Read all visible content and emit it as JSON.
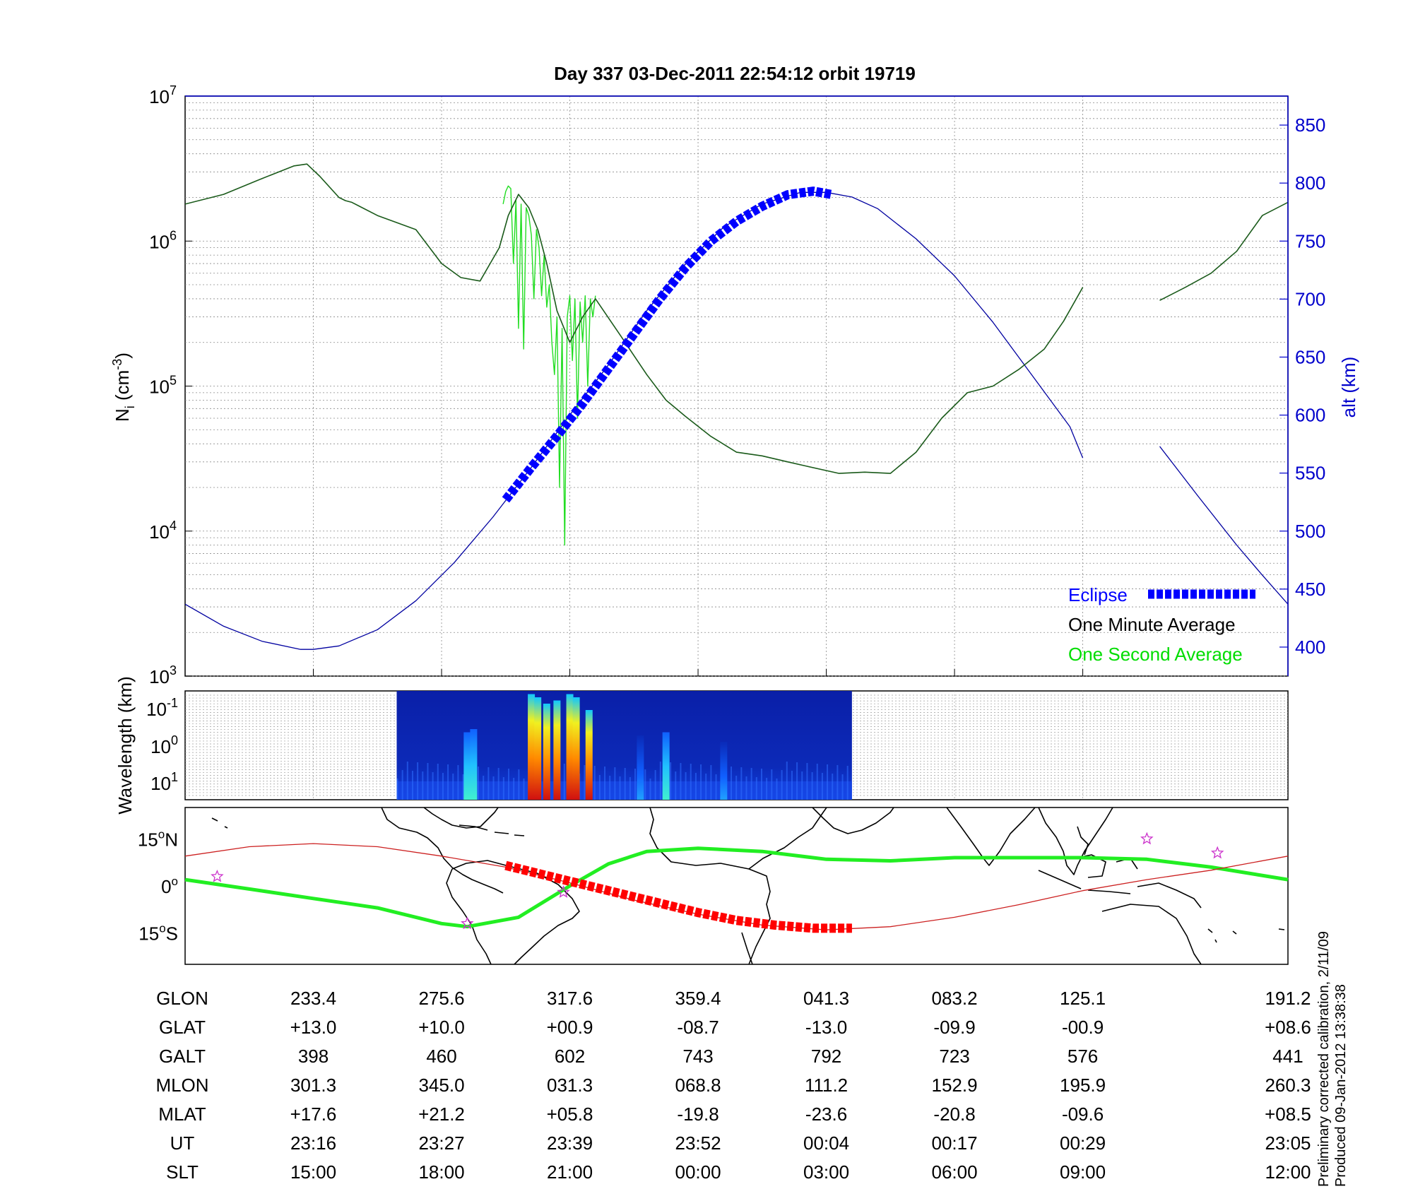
{
  "title": "Day 337  03-Dec-2011 22:54:12   orbit 19719",
  "chart_data": [
    {
      "type": "line",
      "panel": "density",
      "ylabel_left": "N",
      "ylabel_left_sub": "i",
      "ylabel_left_unit": " (cm",
      "ylabel_left_exp": "-3",
      "ylabel_left_close": ")",
      "ylabel_right": "alt (km)",
      "yscale_left": "log",
      "ylim_left": [
        1000,
        10000000
      ],
      "ylim_right": [
        375,
        875
      ],
      "xlim": [
        0,
        8.6
      ],
      "left_ticks": [
        {
          "base": "10",
          "exp": "3",
          "v": 1000
        },
        {
          "base": "10",
          "exp": "4",
          "v": 10000
        },
        {
          "base": "10",
          "exp": "5",
          "v": 100000
        },
        {
          "base": "10",
          "exp": "6",
          "v": 1000000
        },
        {
          "base": "10",
          "exp": "7",
          "v": 10000000
        }
      ],
      "right_ticks": [
        "400",
        "450",
        "500",
        "550",
        "600",
        "650",
        "700",
        "750",
        "800",
        "850"
      ],
      "legend": [
        {
          "label": "Eclipse",
          "color": "#0000ff",
          "style": "dashed-thick"
        },
        {
          "label": "One Minute Average",
          "color": "#000000",
          "style": "line"
        },
        {
          "label": "One Second Average",
          "color": "#00dd00",
          "style": "line"
        }
      ],
      "legend_position": "bottom-right",
      "series": [
        {
          "name": "One Minute Average",
          "color": "#1a5a1a",
          "x": [
            0,
            0.3,
            0.6,
            0.85,
            0.95,
            1.05,
            1.2,
            1.25,
            1.3,
            1.5,
            1.8,
            2.0,
            2.15,
            2.3,
            2.45,
            2.52,
            2.6,
            2.68,
            2.75,
            2.82,
            2.9,
            3.0,
            3.1,
            3.2,
            3.4,
            3.6,
            3.75,
            3.9,
            4.1,
            4.3,
            4.5,
            4.7,
            4.85,
            5.1,
            5.3,
            5.5,
            5.7,
            5.9,
            6.1,
            6.3,
            6.5,
            6.7,
            6.85,
            7.0
          ],
          "y": [
            1800000,
            2100000,
            2700000,
            3300000,
            3400000,
            2800000,
            2000000,
            1900000,
            1850000,
            1500000,
            1200000,
            700000,
            560000,
            530000,
            900000,
            1500000,
            2100000,
            1700000,
            1200000,
            700000,
            330000,
            200000,
            300000,
            400000,
            220000,
            120000,
            80000,
            62000,
            45000,
            35000,
            33000,
            30000,
            28000,
            25000,
            25500,
            25000,
            35000,
            60000,
            90000,
            100000,
            130000,
            180000,
            280000,
            480000
          ]
        },
        {
          "name": "One Minute Average",
          "color": "#1a5a1a",
          "x": [
            7.6,
            7.8,
            8.0,
            8.2,
            8.4,
            8.6
          ],
          "y": [
            390000,
            480000,
            600000,
            850000,
            1500000,
            1850000
          ]
        },
        {
          "name": "One Second Average",
          "color": "#22dd22",
          "x": [
            2.48,
            2.5,
            2.52,
            2.54,
            2.56,
            2.58,
            2.6,
            2.62,
            2.64,
            2.66,
            2.68,
            2.7,
            2.72,
            2.74,
            2.76,
            2.78,
            2.8,
            2.82,
            2.84,
            2.86,
            2.88,
            2.9,
            2.92,
            2.94,
            2.96,
            2.98,
            3.0,
            3.02,
            3.04,
            3.06,
            3.08,
            3.1,
            3.12,
            3.14,
            3.16,
            3.18,
            3.2
          ],
          "y": [
            1800000,
            2200000,
            2400000,
            2300000,
            700000,
            1900000,
            250000,
            1800000,
            180000,
            1700000,
            1500000,
            1100000,
            400000,
            1200000,
            900000,
            420000,
            800000,
            350000,
            500000,
            200000,
            120000,
            300000,
            20000,
            250000,
            8000,
            300000,
            420000,
            150000,
            400000,
            60000,
            380000,
            200000,
            420000,
            100000,
            400000,
            300000,
            420000
          ]
        },
        {
          "name": "alt",
          "axis": "right",
          "color": "#0000a0",
          "x": [
            0,
            0.3,
            0.6,
            0.9,
            1.0,
            1.2,
            1.5,
            1.8,
            2.1,
            2.4,
            2.7,
            3.0,
            3.3,
            3.6,
            3.9,
            4.2,
            4.5,
            4.8,
            5.0,
            5.2,
            5.4,
            5.7,
            6.0,
            6.3,
            6.6,
            6.9,
            7.0
          ],
          "axis_y": [
            437,
            418,
            405,
            398,
            398,
            401,
            415,
            440,
            473,
            512,
            555,
            600,
            643,
            690,
            730,
            762,
            782,
            792,
            792,
            788,
            778,
            752,
            720,
            680,
            635,
            590,
            563
          ]
        },
        {
          "name": "alt",
          "axis": "right",
          "color": "#0000a0",
          "x": [
            7.6,
            7.9,
            8.2,
            8.4,
            8.6
          ],
          "axis_y": [
            573,
            530,
            488,
            462,
            437
          ]
        },
        {
          "name": "Eclipse",
          "axis": "right",
          "color": "#0000ff",
          "style": "dashed-thick",
          "x": [
            2.5,
            2.7,
            2.9,
            3.1,
            3.3,
            3.5,
            3.7,
            3.9,
            4.1,
            4.3,
            4.5,
            4.7,
            4.9,
            5.05
          ],
          "axis_y": [
            527,
            555,
            582,
            610,
            640,
            670,
            700,
            727,
            750,
            767,
            780,
            790,
            793,
            790
          ]
        }
      ]
    },
    {
      "type": "heatmap",
      "panel": "spectrogram",
      "ylabel": "Wavelength (km)",
      "yscale": "log",
      "y_ticks": [
        {
          "base": "10",
          "exp": "-1"
        },
        {
          "base": "10",
          "exp": "0"
        },
        {
          "base": "10",
          "exp": "1"
        }
      ],
      "x_coverage": [
        1.65,
        5.2
      ],
      "bursts": [
        {
          "x": 2.2,
          "intensity": 0.35
        },
        {
          "x": 2.25,
          "intensity": 0.4
        },
        {
          "x": 2.7,
          "intensity": 0.95
        },
        {
          "x": 2.75,
          "intensity": 0.9
        },
        {
          "x": 2.82,
          "intensity": 0.8
        },
        {
          "x": 2.9,
          "intensity": 0.85
        },
        {
          "x": 3.0,
          "intensity": 0.95
        },
        {
          "x": 3.05,
          "intensity": 0.9
        },
        {
          "x": 3.15,
          "intensity": 0.7
        },
        {
          "x": 3.55,
          "intensity": 0.3
        },
        {
          "x": 3.75,
          "intensity": 0.35
        },
        {
          "x": 4.2,
          "intensity": 0.2
        }
      ]
    },
    {
      "type": "line",
      "panel": "map",
      "y_ticks": [
        {
          "num": "15",
          "hemi": "N",
          "lat": 15
        },
        {
          "num": "0",
          "hemi": "",
          "lat": 0
        },
        {
          "num": "15",
          "hemi": "S",
          "lat": -15
        }
      ],
      "ylim": [
        -25,
        25
      ],
      "series": [
        {
          "name": "magnetic track",
          "color": "#22ee22",
          "x": [
            0,
            0.5,
            1.0,
            1.5,
            2.0,
            2.2,
            2.6,
            3.0,
            3.3,
            3.6,
            4.0,
            4.5,
            5.0,
            5.5,
            6.0,
            6.5,
            7.0,
            7.5,
            8.0,
            8.6
          ],
          "y": [
            2,
            -1,
            -4,
            -7,
            -12,
            -13,
            -10,
            0,
            7,
            11,
            12,
            11,
            8.5,
            8,
            9,
            9,
            9,
            8.5,
            6,
            2
          ]
        },
        {
          "name": "orbit ground track",
          "color": "#cc2020",
          "x": [
            0,
            0.5,
            1.0,
            1.5,
            2.0,
            2.5,
            3.0,
            3.5,
            4.0,
            4.5,
            5.0,
            5.5,
            6.0,
            6.5,
            7.0,
            7.5,
            8.0,
            8.6
          ],
          "y": [
            9.5,
            12.5,
            13.5,
            12.5,
            9.5,
            6,
            1,
            -4.5,
            -9,
            -12.5,
            -14,
            -13,
            -10,
            -6,
            -1.5,
            2,
            5,
            9.5
          ]
        },
        {
          "name": "eclipse ground track",
          "color": "#ff0000",
          "style": "dashed-thick",
          "x": [
            2.5,
            2.8,
            3.1,
            3.4,
            3.7,
            4.0,
            4.3,
            4.6,
            4.9,
            5.2
          ],
          "y": [
            6.5,
            3.5,
            0.5,
            -2.5,
            -5.5,
            -8.5,
            -11,
            -12.5,
            -13.5,
            -13.5
          ]
        }
      ],
      "stars": [
        [
          0.25,
          3
        ],
        [
          2.95,
          -2
        ],
        [
          2.2,
          -12
        ],
        [
          7.5,
          15
        ],
        [
          8.05,
          10.5
        ]
      ]
    }
  ],
  "table": {
    "rows": [
      {
        "label": "GLON",
        "values": [
          "233.4",
          "275.6",
          "317.6",
          "359.4",
          "041.3",
          "083.2",
          "125.1",
          "191.2"
        ]
      },
      {
        "label": "GLAT",
        "values": [
          "+13.0",
          "+10.0",
          "+00.9",
          "-08.7",
          "-13.0",
          "-09.9",
          "-00.9",
          "+08.6"
        ]
      },
      {
        "label": "GALT",
        "values": [
          "398",
          "460",
          "602",
          "743",
          "792",
          "723",
          "576",
          "441"
        ]
      },
      {
        "label": "MLON",
        "values": [
          "301.3",
          "345.0",
          "031.3",
          "068.8",
          "111.2",
          "152.9",
          "195.9",
          "260.3"
        ]
      },
      {
        "label": "MLAT",
        "values": [
          "+17.6",
          "+21.2",
          "+05.8",
          "-19.8",
          "-23.6",
          "-20.8",
          "-09.6",
          "+08.5"
        ]
      },
      {
        "label": "UT",
        "values": [
          "23:16",
          "23:27",
          "23:39",
          "23:52",
          "00:04",
          "00:17",
          "00:29",
          "23:05"
        ]
      },
      {
        "label": "SLT",
        "values": [
          "15:00",
          "18:00",
          "21:00",
          "00:00",
          "03:00",
          "06:00",
          "09:00",
          "12:00"
        ]
      }
    ],
    "column_x": [
      1,
      2,
      3,
      4,
      5,
      6,
      7,
      8.6
    ]
  },
  "side_note": {
    "line1": "Preliminary corrected calibration, 2/11/09",
    "line2": "Produced 09-Jan-2012 13:38:38"
  }
}
